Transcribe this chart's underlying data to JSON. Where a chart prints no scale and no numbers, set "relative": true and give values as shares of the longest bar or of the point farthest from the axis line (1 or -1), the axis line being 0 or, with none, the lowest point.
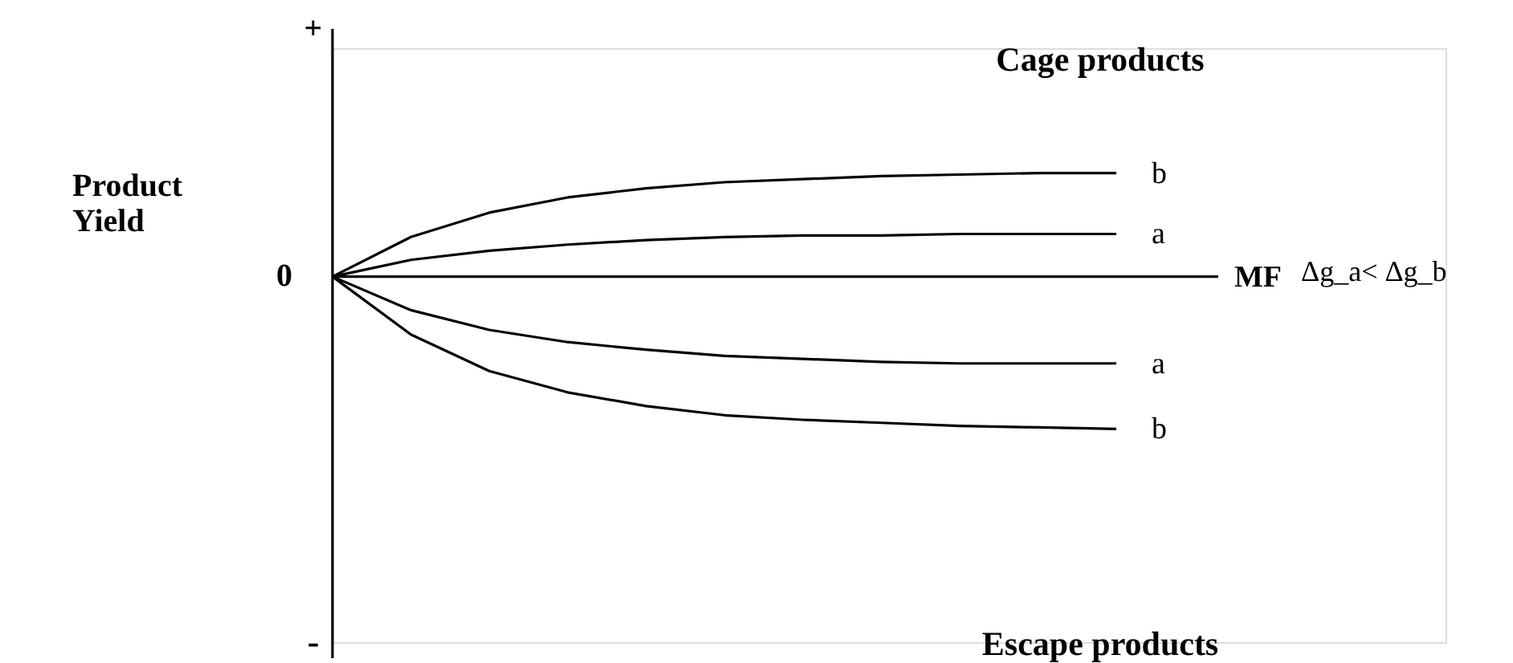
{
  "chart_data": {
    "type": "line",
    "relative": true,
    "xlabel": "MF",
    "ylabel": "Product Yield",
    "legend": false,
    "marker": "none",
    "line_style": "solid",
    "categories": [
      null,
      null,
      null,
      null,
      null,
      null,
      null,
      null,
      null,
      null,
      null
    ],
    "series": [
      {
        "name": "b",
        "color": "#000000",
        "values": [
          0,
          0.26,
          0.42,
          0.52,
          0.58,
          0.62,
          0.64,
          0.66,
          0.67,
          0.68,
          0.68
        ]
      },
      {
        "name": "a",
        "color": "#000000",
        "values": [
          0,
          0.11,
          0.17,
          0.21,
          0.24,
          0.26,
          0.27,
          0.27,
          0.28,
          0.28,
          0.28
        ]
      },
      {
        "name": "a",
        "color": "#000000",
        "values": [
          0,
          -0.22,
          -0.35,
          -0.43,
          -0.48,
          -0.52,
          -0.54,
          -0.56,
          -0.57,
          -0.57,
          -0.57
        ]
      },
      {
        "name": "b",
        "color": "#000000",
        "values": [
          0,
          -0.38,
          -0.62,
          -0.76,
          -0.85,
          -0.91,
          -0.94,
          -0.96,
          -0.98,
          -0.99,
          -1
        ]
      }
    ],
    "annotations": [
      "+",
      "0",
      "-",
      "Cage products",
      "Escape products",
      "Δg_a< Δg_b"
    ]
  }
}
